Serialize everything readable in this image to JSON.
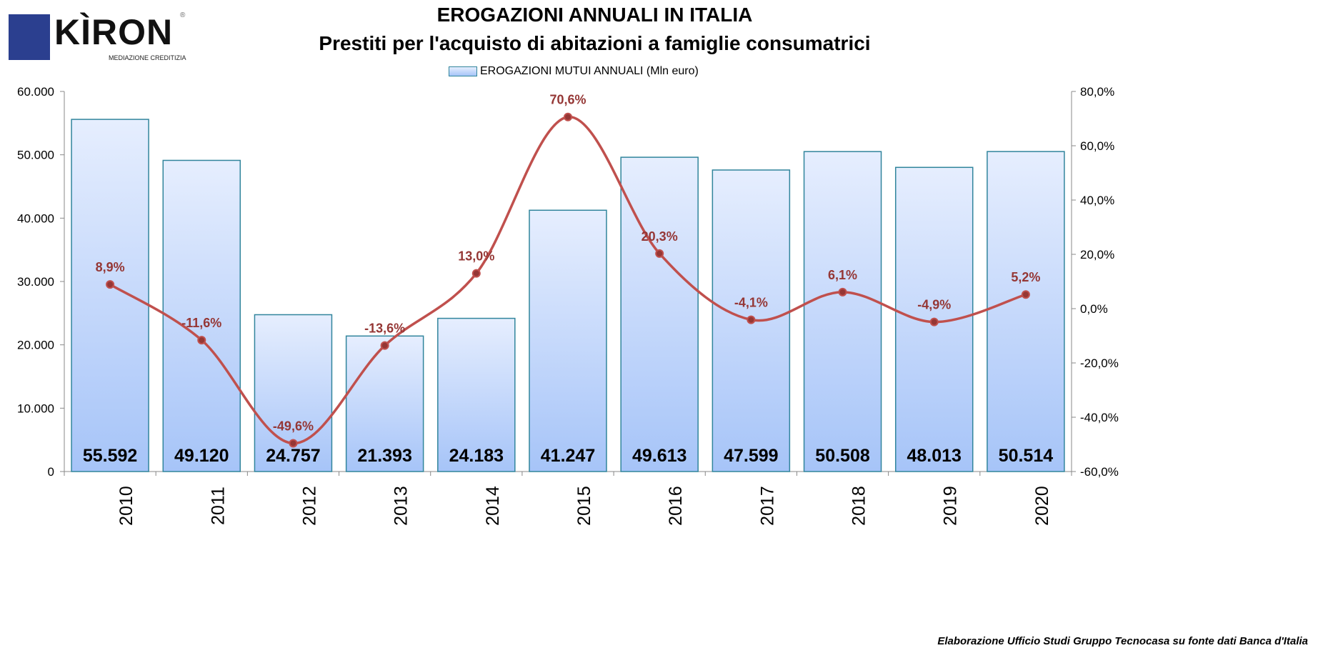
{
  "logo": {
    "text": "KÌRON",
    "subtitle": "MEDIAZIONE CREDITIZIA",
    "mark": "®"
  },
  "footer": {
    "source": "Elaborazione  Ufficio Studi Gruppo Tecnocasa su fonte dati Banca d'Italia"
  },
  "chart_data": {
    "type": "bar+line",
    "title": "EROGAZIONI ANNUALI IN ITALIA",
    "subtitle": "Prestiti per l'acquisto di abitazioni a famiglie consumatrici",
    "legend": {
      "label": "EROGAZIONI MUTUI ANNUALI (Mln euro)",
      "placement": "top"
    },
    "categories": [
      "2010",
      "2011",
      "2012",
      "2013",
      "2014",
      "2015",
      "2016",
      "2017",
      "2018",
      "2019",
      "2020"
    ],
    "series": [
      {
        "name": "EROGAZIONI MUTUI ANNUALI (Mln euro)",
        "type": "bar",
        "axis": "left",
        "values": [
          55592,
          49120,
          24757,
          21393,
          24183,
          41247,
          49613,
          47599,
          50508,
          48013,
          50514
        ],
        "labels": [
          "55.592",
          "49.120",
          "24.757",
          "21.393",
          "24.183",
          "41.247",
          "49.613",
          "47.599",
          "50.508",
          "48.013",
          "50.514"
        ],
        "color": "#A6C4F8",
        "border": "#31859C"
      },
      {
        "type": "line",
        "axis": "right",
        "values": [
          8.9,
          -11.6,
          -49.6,
          -13.6,
          13.0,
          70.6,
          20.3,
          -4.1,
          6.1,
          -4.9,
          5.2
        ],
        "labels": [
          "8,9%",
          "-11,6%",
          "-49,6%",
          "-13,6%",
          "13,0%",
          "70,6%",
          "20,3%",
          "-4,1%",
          "6,1%",
          "-4,9%",
          "5,2%"
        ],
        "color": "#C0504D",
        "label_color": "#953735"
      }
    ],
    "y_left": {
      "range": [
        0,
        60000
      ],
      "ticks": [
        "0",
        "10.000",
        "20.000",
        "30.000",
        "40.000",
        "50.000",
        "60.000"
      ]
    },
    "y_right": {
      "range": [
        -60,
        80
      ],
      "ticks": [
        "-60,0%",
        "-40,0%",
        "-20,0%",
        "0,0%",
        "20,0%",
        "40,0%",
        "60,0%",
        "80,0%"
      ]
    },
    "grid": false
  }
}
